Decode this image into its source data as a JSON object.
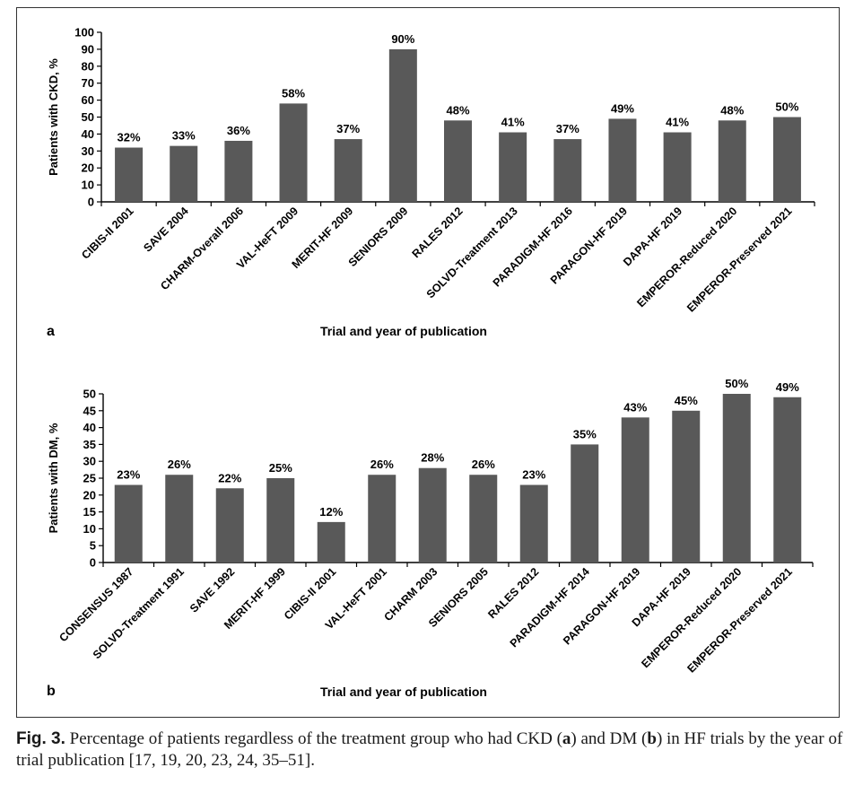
{
  "colors": {
    "bar": "#595959",
    "axis": "#000000",
    "text": "#000000"
  },
  "chart_data": [
    {
      "type": "bar",
      "panel_label": "a",
      "ylabel": "Patients with CKD, %",
      "xlabel": "Trial and year of publication",
      "ylim": [
        0,
        100
      ],
      "yticks": [
        0,
        10,
        20,
        30,
        40,
        50,
        60,
        70,
        80,
        90,
        100
      ],
      "categories": [
        "CIBIS-II 2001",
        "SAVE 2004",
        "CHARM-Overall 2006",
        "VAL-HeFT 2009",
        "MERIT-HF 2009",
        "SENIORS 2009",
        "RALES 2012",
        "SOLVD-Treatment 2013",
        "PARADIGM-HF 2016",
        "PARAGON-HF 2019",
        "DAPA-HF 2019",
        "EMPEROR-Reduced 2020",
        "EMPEROR-Preserved 2021"
      ],
      "values": [
        32,
        33,
        36,
        58,
        37,
        90,
        48,
        41,
        37,
        49,
        41,
        48,
        50
      ],
      "data_labels": [
        "32%",
        "33%",
        "36%",
        "58%",
        "37%",
        "90%",
        "48%",
        "41%",
        "37%",
        "49%",
        "41%",
        "48%",
        "50%"
      ],
      "grid": false
    },
    {
      "type": "bar",
      "panel_label": "b",
      "ylabel": "Patients with DM, %",
      "xlabel": "Trial and year of publication",
      "ylim": [
        0,
        50
      ],
      "yticks": [
        0,
        5,
        10,
        15,
        20,
        25,
        30,
        35,
        40,
        45,
        50
      ],
      "categories": [
        "CONSENSUS 1987",
        "SOLVD-Treatment 1991",
        "SAVE 1992",
        "MERIT-HF 1999",
        "CIBIS-II 2001",
        "VAL-HeFT 2001",
        "CHARM 2003",
        "SENIORS 2005",
        "RALES 2012",
        "PARADIGM-HF 2014",
        "PARAGON-HF 2019",
        "DAPA-HF 2019",
        "EMPEROR-Reduced 2020",
        "EMPEROR-Preserved 2021"
      ],
      "values": [
        23,
        26,
        22,
        25,
        12,
        26,
        28,
        26,
        23,
        35,
        43,
        45,
        50,
        49
      ],
      "data_labels": [
        "23%",
        "26%",
        "22%",
        "25%",
        "12%",
        "26%",
        "28%",
        "26%",
        "23%",
        "35%",
        "43%",
        "45%",
        "50%",
        "49%"
      ],
      "grid": false
    }
  ],
  "caption": {
    "fig_label": "Fig. 3.",
    "text_1": " Percentage of patients regardless of the treatment group who had CKD (",
    "a": "a",
    "text_2": ") and DM (",
    "b": "b",
    "text_3": ") in HF trials by the year of trial publication [17, 19, 20, 23, 24, 35–51]."
  }
}
